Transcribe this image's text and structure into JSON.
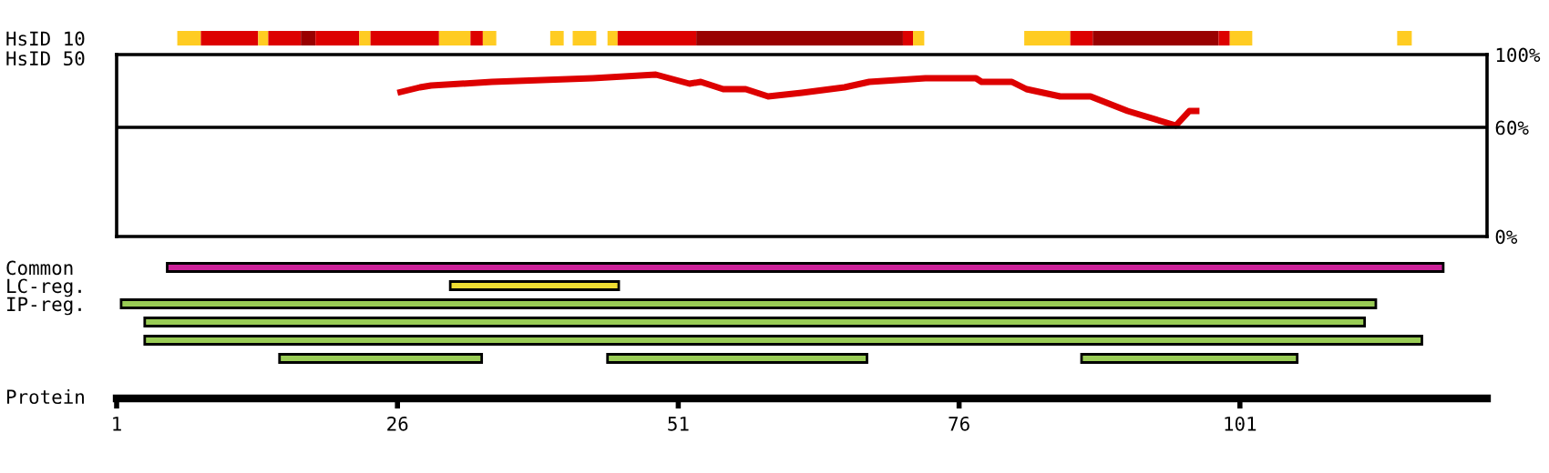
{
  "chart_data": [
    {
      "type": "bar",
      "orientation": "horizontal",
      "categories": [
        "HsID 10"
      ],
      "xlim": [
        1,
        123
      ],
      "tick_labels": "y",
      "series": [
        {
          "color": "#ffcc22",
          "base": [
            6.4
          ],
          "values": [
            2.1
          ]
        },
        {
          "color": "#dd0000",
          "base": [
            8.5
          ],
          "values": [
            5.1
          ]
        },
        {
          "color": "#ffcc22",
          "base": [
            13.6
          ],
          "values": [
            0.9
          ]
        },
        {
          "color": "#dd0000",
          "base": [
            14.5
          ],
          "values": [
            2.9
          ]
        },
        {
          "color": "#990000",
          "base": [
            17.4
          ],
          "values": [
            1.3
          ]
        },
        {
          "color": "#dd0000",
          "base": [
            18.7
          ],
          "values": [
            3.9
          ]
        },
        {
          "color": "#ffcc22",
          "base": [
            22.6
          ],
          "values": [
            1.0
          ]
        },
        {
          "color": "#dd0000",
          "base": [
            23.6
          ],
          "values": [
            6.1
          ]
        },
        {
          "color": "#ffcc22",
          "base": [
            29.7
          ],
          "values": [
            2.8
          ]
        },
        {
          "color": "#dd0000",
          "base": [
            32.5
          ],
          "values": [
            1.1
          ]
        },
        {
          "color": "#ffcc22",
          "base": [
            33.6
          ],
          "values": [
            1.2
          ]
        },
        {
          "color": "#ffcc22",
          "base": [
            39.6
          ],
          "values": [
            1.2
          ]
        },
        {
          "color": "#ffcc22",
          "base": [
            41.6
          ],
          "values": [
            2.1
          ]
        },
        {
          "color": "#ffcc22",
          "base": [
            44.7
          ],
          "values": [
            0.9
          ]
        },
        {
          "color": "#dd0000",
          "base": [
            45.6
          ],
          "values": [
            7.0
          ]
        },
        {
          "color": "#990000",
          "base": [
            52.6
          ],
          "values": [
            18.4
          ]
        },
        {
          "color": "#dd0000",
          "base": [
            71.0
          ],
          "values": [
            0.9
          ]
        },
        {
          "color": "#ffcc22",
          "base": [
            71.9
          ],
          "values": [
            1.0
          ]
        },
        {
          "color": "#ffcc22",
          "base": [
            81.8
          ],
          "values": [
            4.1
          ]
        },
        {
          "color": "#dd0000",
          "base": [
            85.9
          ],
          "values": [
            2.0
          ]
        },
        {
          "color": "#990000",
          "base": [
            87.9
          ],
          "values": [
            11.2
          ]
        },
        {
          "color": "#dd0000",
          "base": [
            99.1
          ],
          "values": [
            1.0
          ]
        },
        {
          "color": "#ffcc22",
          "base": [
            100.1
          ],
          "values": [
            2.0
          ]
        },
        {
          "color": "#ffcc22",
          "base": [
            115.0
          ],
          "values": [
            1.3
          ]
        }
      ]
    },
    {
      "type": "line",
      "ylabel": "HsID 50",
      "xlim": [
        1,
        123
      ],
      "ylim": [
        0,
        100
      ],
      "yticks": [
        {
          "value": 0,
          "label": "0%"
        },
        {
          "value": 60,
          "label": "60%"
        },
        {
          "value": 100,
          "label": "100%"
        }
      ],
      "tick_labels": "y",
      "ref_lines": [
        {
          "axis": "y",
          "value": 60,
          "label": null
        }
      ],
      "marker": "none",
      "line_style": "solid",
      "series": [
        {
          "color": "#dd0000",
          "x": [
            26,
            28,
            29,
            34.4,
            43.4,
            49,
            52,
            53,
            55,
            57,
            59,
            62,
            65.8,
            68,
            73,
            77.5,
            78,
            80.7,
            82,
            85,
            87.7,
            91,
            95.3,
            96.5,
            97.4
          ],
          "values": [
            79,
            82,
            83,
            85,
            87,
            89,
            84,
            85,
            81,
            81,
            77,
            79,
            82,
            85,
            87,
            87,
            85,
            85,
            81,
            77,
            77,
            69,
            61,
            69,
            69
          ]
        }
      ]
    },
    {
      "type": "bar",
      "orientation": "horizontal",
      "categories": [
        "Common",
        "LC-reg.",
        "IP-reg.",
        null,
        null,
        null
      ],
      "xlabel": "Protein",
      "xlim": [
        1,
        123
      ],
      "xticks": [
        1,
        26,
        51,
        76,
        101
      ],
      "series": [
        {
          "colors": [
            "#cc2299",
            "#eedd33",
            "#99cc55",
            "#99cc55",
            "#99cc55",
            "#99cc55"
          ],
          "base": [
            5.5,
            30.7,
            1.4,
            3.5,
            3.5,
            15.5
          ],
          "values": [
            113.6,
            15.0,
            111.7,
            108.6,
            113.7,
            18.0
          ]
        },
        {
          "color": "#99cc55",
          "base": [
            null,
            null,
            null,
            null,
            null,
            44.7
          ],
          "values": [
            null,
            null,
            null,
            null,
            null,
            23.1
          ]
        },
        {
          "color": "#99cc55",
          "base": [
            null,
            null,
            null,
            null,
            null,
            86.9
          ],
          "values": [
            null,
            null,
            null,
            null,
            null,
            19.2
          ]
        }
      ]
    }
  ]
}
